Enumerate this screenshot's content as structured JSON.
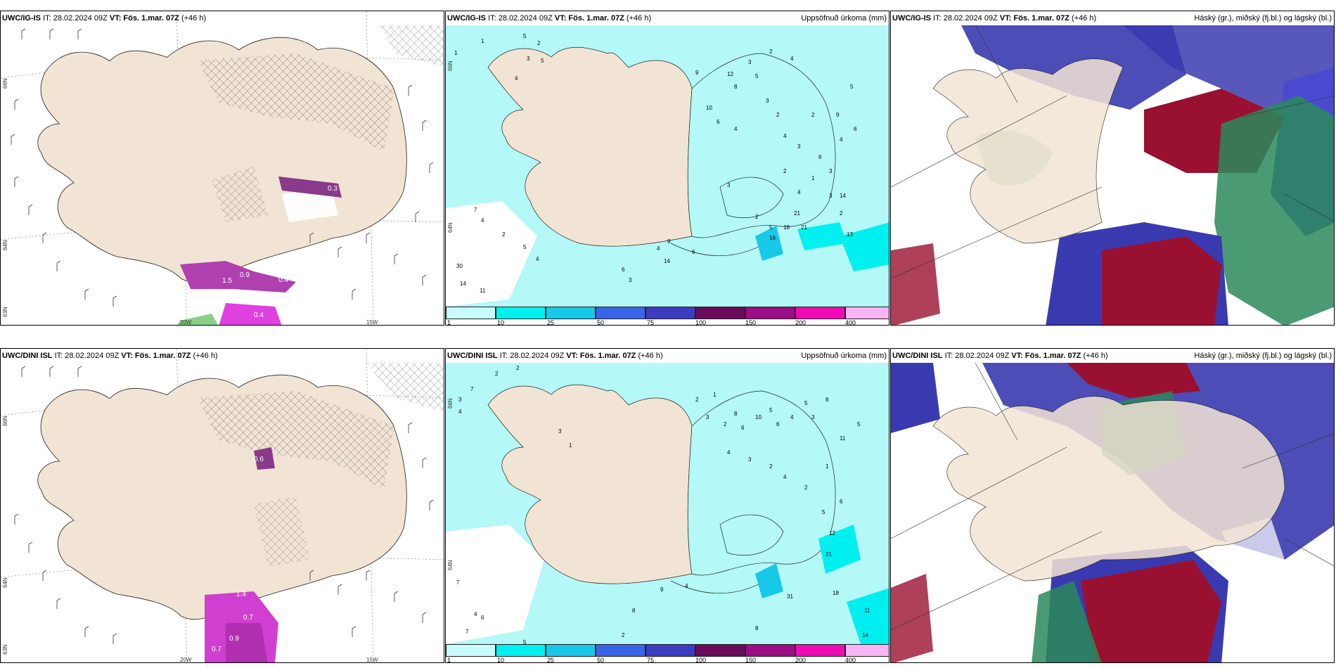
{
  "panels": {
    "top_left": {
      "model": "UWC/IG-IS",
      "it": "IT: 28.02.2024 09Z",
      "vt_label": "VT:",
      "vt": "Fös. 1.mar. 07Z",
      "lead": "(+46 h)",
      "lat1": "66N",
      "lat2": "64N",
      "lat3": "63N",
      "lon1": "20W",
      "lon2": "15W",
      "values": [
        "0.3",
        "0.9",
        "0.4",
        "1.5",
        "0.4"
      ]
    },
    "top_mid": {
      "model": "UWC/IG-IS",
      "it": "IT: 28.02.2024 09Z",
      "vt_label": "VT:",
      "vt": "Fös. 1.mar. 07Z",
      "lead": "(+46 h)",
      "right": "Uppsöfnuð úrkoma (mm)",
      "lat1": "66N",
      "lat2": "64N",
      "numbers": [
        "5",
        "1",
        "2",
        "3",
        "4",
        "5",
        "9",
        "12",
        "8",
        "3",
        "2",
        "4",
        "10",
        "6",
        "4",
        "5",
        "3",
        "2",
        "4",
        "3",
        "2",
        "6",
        "3",
        "4",
        "1",
        "2",
        "4",
        "3",
        "2",
        "9",
        "6",
        "5",
        "2",
        "14",
        "5",
        "21",
        "21",
        "18",
        "16",
        "13",
        "3",
        "7",
        "4",
        "2",
        "5",
        "4",
        "9",
        "14",
        "6",
        "3",
        "4",
        "6",
        "30",
        "14",
        "11",
        "1"
      ]
    },
    "top_right": {
      "model": "UWC/IG-IS",
      "it": "IT: 28.02.2024 09Z",
      "vt_label": "VT:",
      "vt": "Fös. 1.mar. 07Z",
      "lead": "(+46 h)",
      "right": "Háský (gr.), miðský (fj.bl.) og lágský (bl.)"
    },
    "bottom_left": {
      "model": "UWC/DINI ISL",
      "it": "IT: 28.02.2024 09Z",
      "vt_label": "VT:",
      "vt": "Fös. 1.mar. 07Z",
      "lead": "(+46 h)",
      "lat1": "66N",
      "lat2": "64N",
      "lat3": "63N",
      "lon1": "20W",
      "lon2": "15W",
      "values": [
        "0.6",
        "0.7",
        "0.9",
        "0.7",
        "1.4"
      ]
    },
    "bottom_mid": {
      "model": "UWC/DINI ISL",
      "it": "IT: 28.02.2024 09Z",
      "vt_label": "VT:",
      "vt": "Fös. 1.mar. 07Z",
      "lead": "(+46 h)",
      "right": "Uppsöfnuð úrkoma (mm)",
      "lat1": "66N",
      "lat2": "64N",
      "numbers": [
        "2",
        "2",
        "7",
        "3",
        "4",
        "1",
        "2",
        "3",
        "2",
        "8",
        "6",
        "10",
        "5",
        "6",
        "4",
        "5",
        "3",
        "8",
        "11",
        "5",
        "4",
        "3",
        "2",
        "4",
        "2",
        "1",
        "5",
        "12",
        "6",
        "21",
        "18",
        "31",
        "11",
        "14",
        "8",
        "7",
        "6",
        "7",
        "8",
        "4",
        "5",
        "2",
        "3",
        "1",
        "9",
        "4"
      ]
    },
    "bottom_right": {
      "model": "UWC/DINI ISL",
      "it": "IT: 28.02.2024 09Z",
      "vt_label": "VT:",
      "vt": "Fös. 1.mar. 07Z",
      "lead": "(+46 h)",
      "right": "Háský (gr.), miðský (fj.bl.) og lágský (bl.)"
    }
  },
  "colorbar": {
    "labels": [
      "1",
      "10",
      "25",
      "50",
      "75",
      "100",
      "150",
      "200",
      "400"
    ],
    "colors": [
      "#c8fbfb",
      "#00f0f0",
      "#18c8e8",
      "#3a64e8",
      "#3c3cc0",
      "#6a0a5a",
      "#9c0c84",
      "#f00ab4",
      "#f8b4f4"
    ]
  },
  "colors": {
    "land": "#f2e4d4",
    "sea": "#ffffff",
    "precip_light": "#b4f8f8",
    "cloud_high": "#2a8a5a",
    "cloud_mid": "#9a1030",
    "cloud_low": "#3a3ab0"
  }
}
